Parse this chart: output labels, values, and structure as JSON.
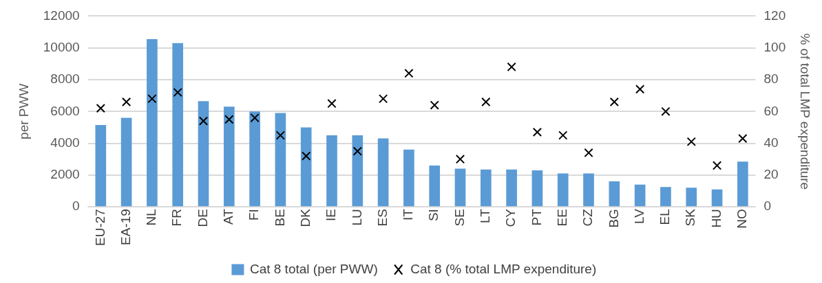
{
  "chart_data": {
    "type": "bar",
    "categories": [
      "EU-27",
      "EA-19",
      "NL",
      "FR",
      "DE",
      "AT",
      "FI",
      "BE",
      "DK",
      "IE",
      "LU",
      "ES",
      "IT",
      "SI",
      "SE",
      "LT",
      "CY",
      "PT",
      "EE",
      "CZ",
      "BG",
      "LV",
      "EL",
      "SK",
      "HU",
      "NO"
    ],
    "series": [
      {
        "name": "Cat 8 total (per PWW)",
        "color": "#5b9bd5",
        "values": [
          5150,
          5600,
          10550,
          10300,
          6650,
          6300,
          6000,
          5900,
          5000,
          4500,
          4500,
          4300,
          3600,
          2600,
          2400,
          2350,
          2350,
          2300,
          2100,
          2100,
          1600,
          1400,
          1250,
          1200,
          1100,
          2850
        ]
      },
      {
        "name": "Cat 8 (% total LMP expenditure)",
        "type": "scatter",
        "axis": "y2",
        "color": "#000000",
        "marker": "cross",
        "values": [
          62,
          66,
          68,
          72,
          54,
          55,
          56,
          45,
          32,
          65,
          35,
          68,
          84,
          64,
          30,
          66,
          88,
          47,
          45,
          34,
          66,
          74,
          60,
          41,
          26,
          43
        ]
      }
    ],
    "ylabel": "per PWW",
    "y2label": "% of total LMP expenditure",
    "ylim": [
      0,
      12000
    ],
    "yticks": [
      0,
      2000,
      4000,
      6000,
      8000,
      10000,
      12000
    ],
    "y2lim": [
      0,
      120
    ],
    "y2ticks": [
      0,
      20,
      40,
      60,
      80,
      100,
      120
    ],
    "grid": "y",
    "legend": "bottom"
  }
}
